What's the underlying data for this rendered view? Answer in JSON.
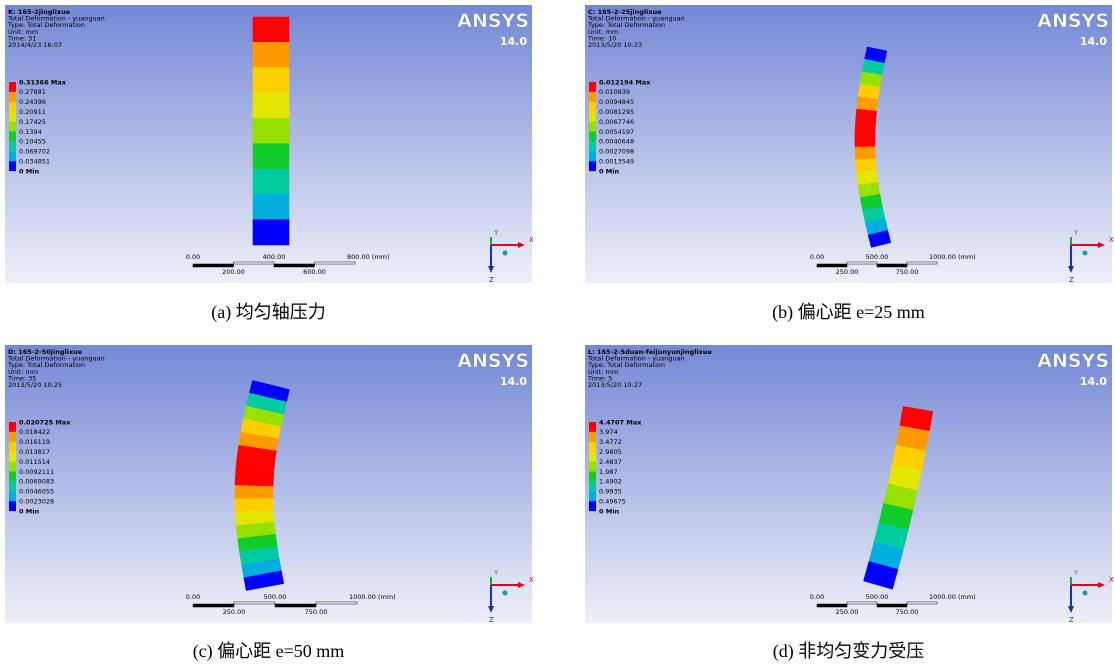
{
  "logo": "ANSYS",
  "version": "14.0",
  "axes": [
    "X",
    "Y",
    "Z"
  ],
  "legend_colors": [
    "#ff0000",
    "#ff9a00",
    "#ffcf00",
    "#e2e600",
    "#97e000",
    "#12cc2c",
    "#00cca0",
    "#00aee0",
    "#0000ff"
  ],
  "panels": [
    {
      "header": [
        "K: 165-2jinglixue",
        "Total Deformation - yuanguan",
        "Type: Total Deformation",
        "Unit: mm",
        "Time: 31",
        "2014/4/23 16:07"
      ],
      "legend": [
        "0.31366 Max",
        "0.27881",
        "0.24396",
        "0.20911",
        "0.17425",
        "0.1394",
        "0.10455",
        "0.069702",
        "0.034851",
        "0 Min"
      ],
      "scale_top": [
        "0.00",
        "400.00",
        "800.00 (mm)"
      ],
      "scale_bottom": [
        "200.00",
        "600.00"
      ],
      "caption": "(a)  均匀轴压力"
    },
    {
      "header": [
        "C: 165-2-25jinglixue",
        "Total Deformation - yuanguan",
        "Type: Total Deformation",
        "Unit: mm",
        "Time: 10",
        "2013/5/20 10:23"
      ],
      "legend": [
        "0.012194 Max",
        "0.010839",
        "0.0094845",
        "0.0081295",
        "0.0067746",
        "0.0054197",
        "0.0040648",
        "0.0027098",
        "0.0013549",
        "0 Min"
      ],
      "scale_top": [
        "0.00",
        "500.00",
        "1000.00 (mm)"
      ],
      "scale_bottom": [
        "250.00",
        "750.00"
      ],
      "caption": "(b)  偏心距 e=25 mm"
    },
    {
      "header": [
        "D: 165-2-50jinglixue",
        "Total Deformation - yuanguan",
        "Type: Total Deformation",
        "Unit: mm",
        "Time: 35",
        "2013/5/20 10:25"
      ],
      "legend": [
        "0.020725 Max",
        "0.018422",
        "0.016119",
        "0.013817",
        "0.011514",
        "0.0092111",
        "0.0069083",
        "0.0046055",
        "0.0023028",
        "0 Min"
      ],
      "scale_top": [
        "0.00",
        "500.00",
        "1000.00 (mm)"
      ],
      "scale_bottom": [
        "250.00",
        "750.00"
      ],
      "caption": "(c)  偏心距 e=50 mm"
    },
    {
      "header": [
        "L: 165-2-5duan-feijunyunjinglixue",
        "Total Deformation - yuanguan",
        "Type: Total Deformation",
        "Unit: mm",
        "Time: 5",
        "2013/5/20 10:27"
      ],
      "legend": [
        "4.4707 Max",
        "3.974",
        "3.4772",
        "2.9805",
        "2.4837",
        "1.987",
        "1.4902",
        "0.9935",
        "0.49675",
        "0 Min"
      ],
      "scale_top": [
        "0.00",
        "500.00",
        "1000.00 (mm)"
      ],
      "scale_bottom": [
        "250.00",
        "750.00"
      ],
      "caption": "(d)  非均匀变力受压"
    }
  ]
}
